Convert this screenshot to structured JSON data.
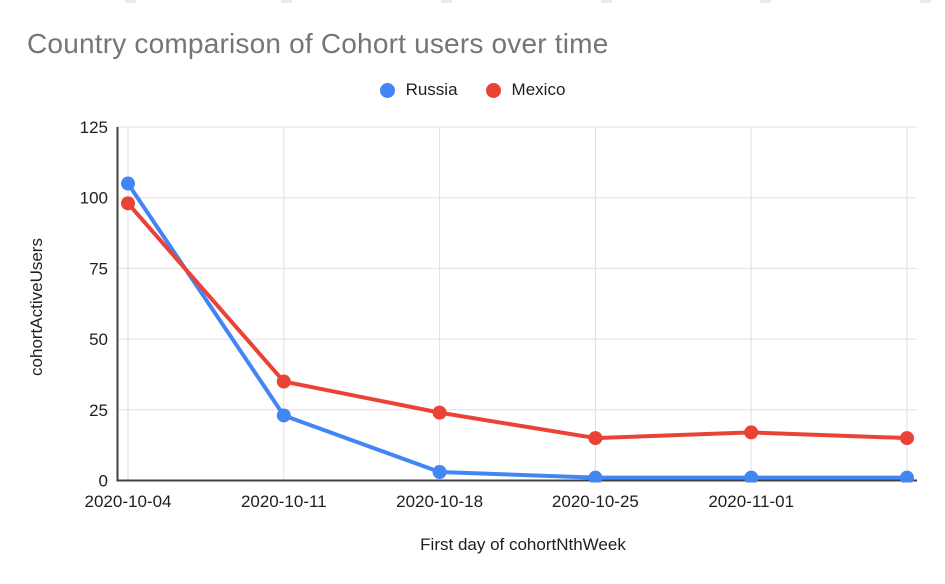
{
  "chart_data": {
    "type": "line",
    "title": "Country comparison of Cohort users over time",
    "xlabel": "First day of cohortNthWeek",
    "ylabel": "cohortActiveUsers",
    "categories": [
      "2020-10-04",
      "2020-10-11",
      "2020-10-18",
      "2020-10-25",
      "2020-11-01",
      ""
    ],
    "series": [
      {
        "name": "Russia",
        "color": "#4285F4",
        "values": [
          105,
          23,
          3,
          1,
          1,
          1
        ]
      },
      {
        "name": "Mexico",
        "color": "#EA4335",
        "values": [
          98,
          35,
          24,
          15,
          17,
          15
        ]
      }
    ],
    "ylim": [
      0,
      125
    ],
    "y_ticks": [
      0,
      25,
      50,
      75,
      100,
      125
    ],
    "grid": true,
    "legend_position": "top-center",
    "marker": "circle"
  },
  "colors": {
    "title_text": "#757575",
    "tick_text": "#1f1f1f",
    "axis_line": "#424242",
    "grid_line": "#e0e0e0",
    "background": "#ffffff"
  }
}
